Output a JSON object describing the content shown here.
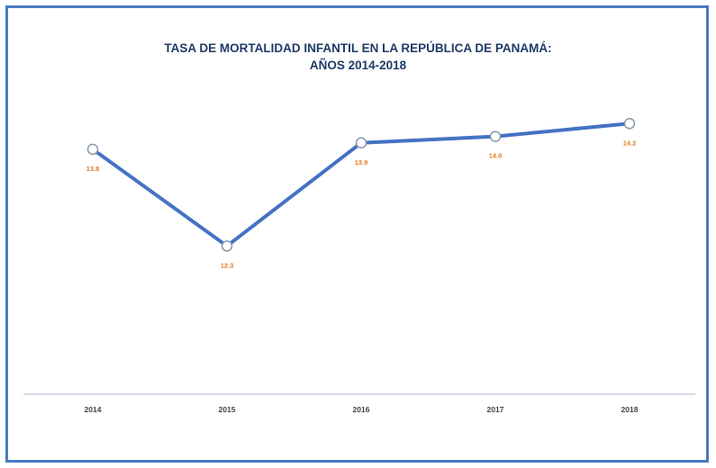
{
  "chart_data": {
    "type": "line",
    "title_line1": "TASA DE MORTALIDAD INFANTIL EN LA REPÚBLICA DE PANAMÁ:",
    "title_line2": "AÑOS 2014-2018",
    "categories": [
      "2014",
      "2015",
      "2016",
      "2017",
      "2018"
    ],
    "series": [
      {
        "values": [
          13.8,
          12.3,
          13.9,
          14.0,
          14.2
        ]
      }
    ],
    "data_labels": [
      "13.8",
      "12.3",
      "13.9",
      "14.0",
      "14.2"
    ],
    "xlabel": "",
    "ylabel": "",
    "ylim": [
      10.0,
      15.0
    ],
    "grid": false,
    "legend": "none",
    "line_color": "#4472c4",
    "label_color": "#e07b28",
    "axis_color": "#c9d3e6",
    "marker_fill": "#ffffff"
  }
}
